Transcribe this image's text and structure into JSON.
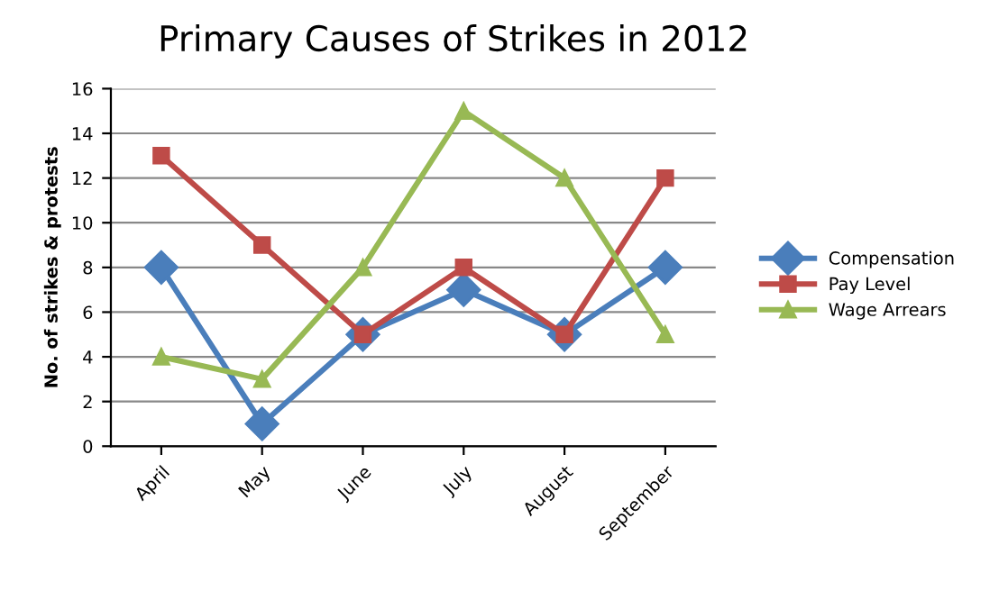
{
  "chart_data": {
    "type": "line",
    "title": "Primary Causes of Strikes in 2012",
    "ylabel": "No. of strikes & protests",
    "categories": [
      "April",
      "May",
      "June",
      "July",
      "August",
      "September"
    ],
    "series": [
      {
        "name": "Compensation",
        "color": "#4a7ebb",
        "values": [
          8,
          1,
          5,
          7,
          5,
          8
        ],
        "marker": "diamond"
      },
      {
        "name": "Pay Level",
        "color": "#be4b48",
        "values": [
          13,
          9,
          5,
          8,
          5,
          12
        ],
        "marker": "square"
      },
      {
        "name": "Wage Arrears",
        "color": "#98b954",
        "values": [
          4,
          3,
          8,
          15,
          12,
          5
        ],
        "marker": "triangle"
      }
    ],
    "ylim": [
      0,
      16
    ],
    "yticks": [
      0,
      2,
      4,
      6,
      8,
      10,
      12,
      14,
      16
    ],
    "grid": "y",
    "legend": "right",
    "line_style": "solid"
  }
}
